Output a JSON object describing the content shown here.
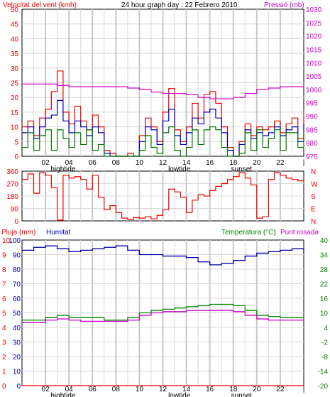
{
  "chart_data": [
    {
      "type": "line",
      "title": "24 hour graph day : 22 Febrero 2010",
      "ylabel": "Velocitat del vent (kmh)",
      "y2label": "Pressió (mb)",
      "ylim": [
        0,
        50
      ],
      "y2lim": [
        975,
        1030
      ],
      "yticks": [
        0,
        5,
        10,
        15,
        20,
        25,
        30,
        35,
        40,
        45,
        50
      ],
      "y2ticks": [
        975,
        980,
        985,
        990,
        995,
        1000,
        1005,
        1010,
        1015,
        1020,
        1025,
        1030
      ],
      "xlim": [
        0,
        24
      ],
      "xticks": [
        "02",
        "04",
        "06",
        "08",
        "10",
        "12",
        "14",
        "16",
        "18",
        "20",
        "22",
        "|"
      ],
      "markers": [
        {
          "label": "hightide",
          "x": 3.5
        },
        {
          "label": "lowtide",
          "x": 13.4
        },
        {
          "label": "sunset",
          "x": 18.7
        }
      ],
      "grid": true,
      "series": [
        {
          "axis": "left",
          "color": "#ee0000",
          "x": [
            0,
            0.5,
            1,
            1.5,
            2,
            2.5,
            3,
            3.5,
            4,
            4.5,
            5,
            5.5,
            6,
            6.5,
            7,
            7.5,
            8,
            8.5,
            9,
            9.5,
            10,
            10.5,
            11,
            11.5,
            12,
            12.5,
            13,
            13.5,
            14,
            14.5,
            15,
            15.5,
            16,
            16.5,
            17,
            17.5,
            18,
            18.5,
            19,
            19.5,
            20,
            20.5,
            21,
            21.5,
            22,
            22.5,
            23,
            23.5,
            24
          ],
          "values": [
            10,
            12,
            7,
            13,
            16,
            22,
            29,
            15,
            11,
            17,
            12,
            9,
            14,
            10,
            2,
            1,
            0,
            0,
            1,
            0,
            7,
            13,
            10,
            5,
            15,
            23,
            9,
            5,
            10,
            18,
            13,
            21,
            22,
            18,
            10,
            3,
            0,
            5,
            11,
            7,
            10,
            9,
            10,
            12,
            8,
            11,
            13,
            6,
            16
          ]
        },
        {
          "axis": "left",
          "color": "#0000bb",
          "x": [
            0,
            0.5,
            1,
            1.5,
            2,
            2.5,
            3,
            3.5,
            4,
            4.5,
            5,
            5.5,
            6,
            6.5,
            7,
            7.5,
            8,
            8.5,
            9,
            9.5,
            10,
            10.5,
            11,
            11.5,
            12,
            12.5,
            13,
            13.5,
            14,
            14.5,
            15,
            15.5,
            16,
            16.5,
            17,
            17.5,
            18,
            18.5,
            19,
            19.5,
            20,
            20.5,
            21,
            21.5,
            22,
            22.5,
            23,
            23.5,
            24
          ],
          "values": [
            8,
            10,
            6,
            10,
            13,
            14,
            19,
            12,
            8,
            12,
            10,
            7,
            10,
            8,
            1,
            0,
            0,
            0,
            0,
            0,
            5,
            10,
            9,
            4,
            12,
            16,
            7,
            4,
            8,
            13,
            11,
            15,
            16,
            13,
            8,
            2,
            0,
            4,
            9,
            6,
            8,
            7,
            8,
            10,
            7,
            9,
            10,
            5,
            11
          ]
        },
        {
          "axis": "left",
          "color": "#007700",
          "x": [
            0,
            0.5,
            1,
            1.5,
            2,
            2.5,
            3,
            3.5,
            4,
            4.5,
            5,
            5.5,
            6,
            6.5,
            7,
            7.5,
            8,
            8.5,
            9,
            9.5,
            10,
            10.5,
            11,
            11.5,
            12,
            12.5,
            13,
            13.5,
            14,
            14.5,
            15,
            15.5,
            16,
            16.5,
            17,
            17.5,
            18,
            18.5,
            19,
            19.5,
            20,
            20.5,
            21,
            21.5,
            22,
            22.5,
            23,
            23.5,
            24
          ],
          "values": [
            3,
            8,
            2,
            7,
            9,
            2,
            9,
            6,
            3,
            8,
            4,
            9,
            2,
            4,
            0,
            0,
            0,
            0,
            0,
            0,
            2,
            7,
            3,
            1,
            8,
            10,
            2,
            0,
            3,
            9,
            4,
            9,
            10,
            9,
            3,
            0,
            0,
            1,
            8,
            2,
            9,
            3,
            6,
            9,
            2,
            8,
            8,
            3,
            9
          ]
        },
        {
          "axis": "right",
          "color": "#cc00cc",
          "x": [
            0,
            1,
            2,
            3,
            4,
            5,
            6,
            7,
            8,
            9,
            10,
            11,
            12,
            13,
            14,
            15,
            16,
            17,
            18,
            19,
            20,
            21,
            22,
            23,
            24
          ],
          "values": [
            1002,
            1002,
            1002,
            1001.5,
            1001,
            1001,
            1001,
            1001,
            1001,
            1000.5,
            1000,
            999,
            998.5,
            998.5,
            998,
            997,
            996.5,
            996.5,
            997,
            998.5,
            1000,
            1000.5,
            1001,
            1001,
            1002
          ]
        }
      ]
    },
    {
      "type": "line",
      "ylabel_ticks": [
        "360",
        "270",
        "180",
        "90",
        "0"
      ],
      "y2label_ticks": [
        "N",
        "W",
        "S",
        "E",
        "N"
      ],
      "ylim": [
        0,
        360
      ],
      "xlim": [
        0,
        24
      ],
      "grid": true,
      "series": [
        {
          "color": "#ee0000",
          "x": [
            0,
            0.5,
            1,
            1.5,
            2,
            2.5,
            3,
            3.5,
            4,
            4.5,
            5,
            5.5,
            6,
            6.5,
            7,
            7.5,
            8,
            8.5,
            9,
            9.5,
            10,
            10.5,
            11,
            11.5,
            12,
            12.5,
            13,
            13.5,
            14,
            14.5,
            15,
            15.5,
            16,
            16.5,
            17,
            17.5,
            18,
            18.5,
            19,
            19.5,
            20,
            20.5,
            21,
            21.5,
            22,
            22.5,
            23,
            23.5,
            24
          ],
          "values": [
            300,
            340,
            200,
            350,
            330,
            240,
            5,
            330,
            310,
            320,
            300,
            230,
            330,
            170,
            80,
            110,
            60,
            20,
            10,
            25,
            20,
            30,
            15,
            40,
            80,
            230,
            210,
            170,
            60,
            150,
            190,
            180,
            220,
            250,
            270,
            300,
            320,
            350,
            310,
            260,
            20,
            30,
            300,
            350,
            330,
            310,
            300,
            290,
            280
          ]
        }
      ]
    },
    {
      "type": "line",
      "labels": [
        "Pluja (mm)",
        "Humitat",
        "Temperatura (°C)",
        "Punt rosada"
      ],
      "ylim": [
        0,
        100
      ],
      "y_left_outer_ticks": [
        0,
        1,
        2,
        3,
        4,
        5,
        6,
        7,
        8,
        9,
        10
      ],
      "y_left_inner_ticks": [
        0,
        10,
        20,
        30,
        40,
        50,
        60,
        70,
        80,
        90,
        100
      ],
      "y_right_ticks": [
        40,
        34,
        28,
        22,
        16,
        10,
        4,
        -2,
        -8,
        -14,
        -20
      ],
      "y2lim": [
        -20,
        40
      ],
      "xlim": [
        0,
        24
      ],
      "xticks": [
        "02",
        "04",
        "06",
        "08",
        "10",
        "12",
        "14",
        "16",
        "18",
        "20",
        "22",
        "|"
      ],
      "markers": [
        {
          "label": "hightide",
          "x": 3.5
        },
        {
          "label": "lowtide",
          "x": 13.4
        },
        {
          "label": "sunset",
          "x": 18.7
        }
      ],
      "grid": true,
      "series": [
        {
          "name": "Pluja (mm)",
          "axis": "left",
          "color": "#ee0000",
          "x": [
            0,
            24
          ],
          "values": [
            0,
            0
          ]
        },
        {
          "name": "Humitat",
          "axis": "left",
          "color": "#0000aa",
          "x": [
            0,
            1,
            2,
            3,
            4,
            5,
            6,
            7,
            8,
            9,
            10,
            11,
            12,
            13,
            14,
            15,
            16,
            17,
            18,
            19,
            20,
            21,
            22,
            23,
            24
          ],
          "values": [
            93,
            95,
            96,
            94,
            92,
            93,
            94,
            95,
            96,
            93,
            90,
            90,
            89,
            89,
            88,
            85,
            83,
            84,
            86,
            89,
            91,
            92,
            93,
            94,
            91
          ]
        },
        {
          "name": "Temperatura (°C)",
          "axis": "right",
          "color": "#008800",
          "x": [
            0,
            1,
            2,
            3,
            4,
            5,
            6,
            7,
            8,
            9,
            10,
            11,
            12,
            13,
            14,
            15,
            16,
            17,
            18,
            19,
            20,
            21,
            22,
            23,
            24
          ],
          "values": [
            7,
            7,
            8,
            9,
            8,
            8,
            8,
            7,
            7,
            8,
            10,
            11,
            11.5,
            12,
            12.5,
            13,
            13.5,
            13.5,
            13,
            11,
            9,
            8.5,
            8,
            8,
            8.5
          ]
        },
        {
          "name": "Punt rosada",
          "axis": "right",
          "color": "#cc00cc",
          "x": [
            0,
            1,
            2,
            3,
            4,
            5,
            6,
            7,
            8,
            9,
            10,
            11,
            12,
            13,
            14,
            15,
            16,
            17,
            18,
            19,
            20,
            21,
            22,
            23,
            24
          ],
          "values": [
            6,
            6,
            7,
            7.5,
            7,
            6.5,
            6.5,
            6.5,
            6.5,
            7,
            9,
            10,
            10.5,
            10.5,
            11,
            11,
            11,
            11,
            10.5,
            9,
            7.5,
            7,
            7,
            7,
            7.5
          ]
        }
      ]
    }
  ]
}
